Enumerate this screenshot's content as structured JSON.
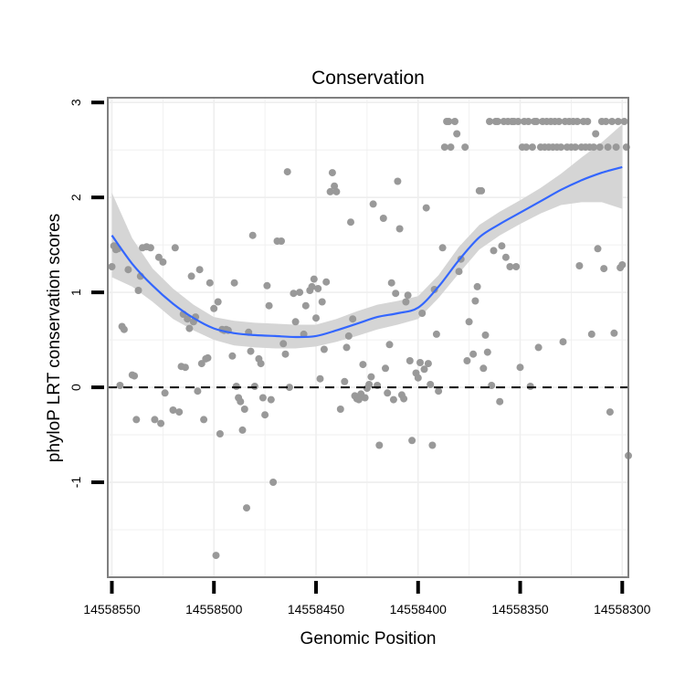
{
  "chart_data": {
    "type": "scatter",
    "title": "Conservation",
    "xlabel": "Genomic Position",
    "ylabel": "phyloP LRT conservation scores",
    "x_reversed": true,
    "xlim": [
      14558550,
      14558300
    ],
    "ylim": [
      -2,
      3
    ],
    "x_ticks": [
      14558550,
      14558500,
      14558450,
      14558400,
      14558350,
      14558300
    ],
    "x_tick_labels": [
      "14558550",
      "14558500",
      "14558450",
      "14558400",
      "14558350",
      "14558300"
    ],
    "y_ticks": [
      -1,
      0,
      1,
      2,
      3
    ],
    "y_tick_labels": [
      "-1",
      "0",
      "1",
      "2",
      "3"
    ],
    "grid": true,
    "reference_line": {
      "y": 0,
      "style": "dashed",
      "color": "#000000"
    },
    "colors": {
      "points": "#999999",
      "smooth_line": "#3366ff",
      "confidence_band": "#d3d3d3",
      "panel_border": "#7f7f7f",
      "grid": "#eeeeee"
    },
    "points": [
      [
        14558550,
        1.27
      ],
      [
        14558549,
        1.49
      ],
      [
        14558548,
        1.45
      ],
      [
        14558547,
        1.46
      ],
      [
        14558546,
        0.02
      ],
      [
        14558545,
        0.64
      ],
      [
        14558544,
        0.61
      ],
      [
        14558542,
        1.24
      ],
      [
        14558540,
        0.13
      ],
      [
        14558539,
        0.12
      ],
      [
        14558538,
        -0.34
      ],
      [
        14558537,
        1.02
      ],
      [
        14558536,
        1.17
      ],
      [
        14558535,
        1.47
      ],
      [
        14558533,
        1.48
      ],
      [
        14558531,
        1.47
      ],
      [
        14558529,
        -0.34
      ],
      [
        14558527,
        1.37
      ],
      [
        14558526,
        -0.38
      ],
      [
        14558525,
        1.32
      ],
      [
        14558524,
        -0.06
      ],
      [
        14558520,
        -0.24
      ],
      [
        14558519,
        1.47
      ],
      [
        14558517,
        -0.26
      ],
      [
        14558516,
        0.22
      ],
      [
        14558515,
        0.77
      ],
      [
        14558514,
        0.21
      ],
      [
        14558513,
        0.72
      ],
      [
        14558512,
        0.62
      ],
      [
        14558511,
        1.17
      ],
      [
        14558510,
        0.69
      ],
      [
        14558509,
        0.74
      ],
      [
        14558508,
        -0.04
      ],
      [
        14558507,
        1.24
      ],
      [
        14558506,
        0.25
      ],
      [
        14558505,
        -0.34
      ],
      [
        14558504,
        0.3
      ],
      [
        14558503,
        0.31
      ],
      [
        14558502,
        1.1
      ],
      [
        14558500,
        0.83
      ],
      [
        14558499,
        -1.77
      ],
      [
        14558498,
        0.9
      ],
      [
        14558497,
        -0.49
      ],
      [
        14558496,
        0.61
      ],
      [
        14558495,
        0.6
      ],
      [
        14558494,
        0.61
      ],
      [
        14558493,
        0.6
      ],
      [
        14558491,
        0.33
      ],
      [
        14558490,
        1.1
      ],
      [
        14558489,
        0.01
      ],
      [
        14558488,
        -0.11
      ],
      [
        14558487,
        -0.15
      ],
      [
        14558486,
        -0.45
      ],
      [
        14558485,
        -0.23
      ],
      [
        14558484,
        -1.27
      ],
      [
        14558483,
        0.58
      ],
      [
        14558482,
        0.38
      ],
      [
        14558481,
        1.6
      ],
      [
        14558480,
        0.01
      ],
      [
        14558478,
        0.3
      ],
      [
        14558477,
        0.25
      ],
      [
        14558476,
        -0.11
      ],
      [
        14558475,
        -0.29
      ],
      [
        14558474,
        1.07
      ],
      [
        14558473,
        0.86
      ],
      [
        14558472,
        -0.13
      ],
      [
        14558471,
        -1.0
      ],
      [
        14558469,
        1.54
      ],
      [
        14558467,
        1.54
      ],
      [
        14558466,
        0.46
      ],
      [
        14558465,
        0.35
      ],
      [
        14558464,
        2.27
      ],
      [
        14558463,
        0.0
      ],
      [
        14558461,
        0.99
      ],
      [
        14558460,
        0.69
      ],
      [
        14558458,
        1.0
      ],
      [
        14558456,
        0.56
      ],
      [
        14558455,
        0.86
      ],
      [
        14558453,
        1.02
      ],
      [
        14558452,
        1.06
      ],
      [
        14558451,
        1.14
      ],
      [
        14558450,
        0.73
      ],
      [
        14558449,
        1.04
      ],
      [
        14558448,
        0.09
      ],
      [
        14558447,
        0.9
      ],
      [
        14558446,
        0.4
      ],
      [
        14558445,
        1.11
      ],
      [
        14558443,
        2.06
      ],
      [
        14558442,
        2.26
      ],
      [
        14558441,
        2.12
      ],
      [
        14558440,
        2.06
      ],
      [
        14558438,
        -0.23
      ],
      [
        14558436,
        0.06
      ],
      [
        14558435,
        0.42
      ],
      [
        14558434,
        0.54
      ],
      [
        14558433,
        1.74
      ],
      [
        14558432,
        0.72
      ],
      [
        14558431,
        -0.09
      ],
      [
        14558430,
        -0.12
      ],
      [
        14558429,
        -0.13
      ],
      [
        14558428,
        -0.07
      ],
      [
        14558427,
        0.24
      ],
      [
        14558426,
        -0.11
      ],
      [
        14558425,
        -0.01
      ],
      [
        14558424,
        0.03
      ],
      [
        14558423,
        0.11
      ],
      [
        14558422,
        1.93
      ],
      [
        14558420,
        0.02
      ],
      [
        14558419,
        -0.61
      ],
      [
        14558417,
        1.78
      ],
      [
        14558416,
        0.2
      ],
      [
        14558415,
        -0.06
      ],
      [
        14558414,
        0.45
      ],
      [
        14558413,
        1.1
      ],
      [
        14558412,
        -0.13
      ],
      [
        14558411,
        0.99
      ],
      [
        14558410,
        2.17
      ],
      [
        14558409,
        1.67
      ],
      [
        14558408,
        -0.08
      ],
      [
        14558407,
        -0.12
      ],
      [
        14558406,
        0.9
      ],
      [
        14558405,
        0.97
      ],
      [
        14558404,
        0.28
      ],
      [
        14558403,
        -0.56
      ],
      [
        14558401,
        0.15
      ],
      [
        14558400,
        0.1
      ],
      [
        14558399,
        0.26
      ],
      [
        14558398,
        0.78
      ],
      [
        14558397,
        0.19
      ],
      [
        14558396,
        1.89
      ],
      [
        14558395,
        0.25
      ],
      [
        14558394,
        0.03
      ],
      [
        14558393,
        -0.61
      ],
      [
        14558392,
        1.03
      ],
      [
        14558391,
        0.56
      ],
      [
        14558390,
        -0.04
      ],
      [
        14558388,
        1.47
      ],
      [
        14558387,
        2.53
      ],
      [
        14558386,
        2.8
      ],
      [
        14558385,
        2.8
      ],
      [
        14558384,
        2.53
      ],
      [
        14558382,
        2.8
      ],
      [
        14558381,
        2.67
      ],
      [
        14558380,
        1.22
      ],
      [
        14558379,
        1.35
      ],
      [
        14558377,
        2.53
      ],
      [
        14558376,
        0.28
      ],
      [
        14558375,
        0.69
      ],
      [
        14558373,
        0.35
      ],
      [
        14558372,
        0.91
      ],
      [
        14558371,
        1.06
      ],
      [
        14558370,
        2.07
      ],
      [
        14558369,
        2.07
      ],
      [
        14558368,
        0.2
      ],
      [
        14558367,
        0.55
      ],
      [
        14558366,
        0.37
      ],
      [
        14558365,
        2.8
      ],
      [
        14558364,
        0.02
      ],
      [
        14558363,
        1.44
      ],
      [
        14558362,
        2.8
      ],
      [
        14558361,
        2.8
      ],
      [
        14558360,
        -0.15
      ],
      [
        14558359,
        1.49
      ],
      [
        14558358,
        2.8
      ],
      [
        14558357,
        1.37
      ],
      [
        14558356,
        2.8
      ],
      [
        14558355,
        1.27
      ],
      [
        14558354,
        2.8
      ],
      [
        14558353,
        2.8
      ],
      [
        14558352,
        1.27
      ],
      [
        14558351,
        2.8
      ],
      [
        14558350,
        0.21
      ],
      [
        14558349,
        2.53
      ],
      [
        14558348,
        2.8
      ],
      [
        14558347,
        2.53
      ],
      [
        14558346,
        2.8
      ],
      [
        14558345,
        0.01
      ],
      [
        14558344,
        2.53
      ],
      [
        14558343,
        2.8
      ],
      [
        14558342,
        2.8
      ],
      [
        14558341,
        0.42
      ],
      [
        14558340,
        2.53
      ],
      [
        14558339,
        2.8
      ],
      [
        14558338,
        2.53
      ],
      [
        14558337,
        2.8
      ],
      [
        14558336,
        2.53
      ],
      [
        14558335,
        2.8
      ],
      [
        14558334,
        2.53
      ],
      [
        14558333,
        2.8
      ],
      [
        14558332,
        2.53
      ],
      [
        14558331,
        2.8
      ],
      [
        14558330,
        2.53
      ],
      [
        14558329,
        0.48
      ],
      [
        14558328,
        2.8
      ],
      [
        14558327,
        2.53
      ],
      [
        14558326,
        2.8
      ],
      [
        14558325,
        2.53
      ],
      [
        14558324,
        2.8
      ],
      [
        14558323,
        2.53
      ],
      [
        14558322,
        2.8
      ],
      [
        14558321,
        1.28
      ],
      [
        14558320,
        2.53
      ],
      [
        14558319,
        2.8
      ],
      [
        14558318,
        2.53
      ],
      [
        14558317,
        2.8
      ],
      [
        14558316,
        2.53
      ],
      [
        14558315,
        0.56
      ],
      [
        14558314,
        2.53
      ],
      [
        14558313,
        2.67
      ],
      [
        14558312,
        1.46
      ],
      [
        14558311,
        2.53
      ],
      [
        14558310,
        2.8
      ],
      [
        14558309,
        1.25
      ],
      [
        14558308,
        2.8
      ],
      [
        14558307,
        2.53
      ],
      [
        14558306,
        -0.26
      ],
      [
        14558305,
        2.8
      ],
      [
        14558304,
        0.57
      ],
      [
        14558303,
        2.53
      ],
      [
        14558302,
        2.8
      ],
      [
        14558301,
        1.26
      ],
      [
        14558300,
        1.29
      ],
      [
        14558299,
        2.8
      ],
      [
        14558298,
        2.53
      ],
      [
        14558297,
        -0.72
      ]
    ],
    "smooth": {
      "x": [
        14558550,
        14558540,
        14558530,
        14558520,
        14558510,
        14558500,
        14558490,
        14558480,
        14558470,
        14558460,
        14558450,
        14558440,
        14558430,
        14558420,
        14558410,
        14558400,
        14558390,
        14558380,
        14558370,
        14558360,
        14558350,
        14558340,
        14558330,
        14558320,
        14558310,
        14558300
      ],
      "y": [
        1.6,
        1.3,
        1.07,
        0.88,
        0.73,
        0.62,
        0.57,
        0.55,
        0.54,
        0.53,
        0.54,
        0.6,
        0.67,
        0.74,
        0.78,
        0.84,
        1.06,
        1.34,
        1.58,
        1.72,
        1.84,
        1.96,
        2.08,
        2.18,
        2.26,
        2.32
      ],
      "lower": [
        1.16,
        1.06,
        0.9,
        0.72,
        0.6,
        0.5,
        0.44,
        0.42,
        0.41,
        0.41,
        0.43,
        0.48,
        0.54,
        0.61,
        0.66,
        0.72,
        0.94,
        1.2,
        1.45,
        1.6,
        1.72,
        1.83,
        1.92,
        1.95,
        1.95,
        1.88
      ],
      "upper": [
        2.05,
        1.57,
        1.25,
        1.04,
        0.87,
        0.74,
        0.7,
        0.68,
        0.67,
        0.66,
        0.66,
        0.72,
        0.8,
        0.87,
        0.91,
        0.96,
        1.18,
        1.48,
        1.71,
        1.85,
        1.97,
        2.1,
        2.25,
        2.42,
        2.58,
        2.77
      ]
    }
  }
}
